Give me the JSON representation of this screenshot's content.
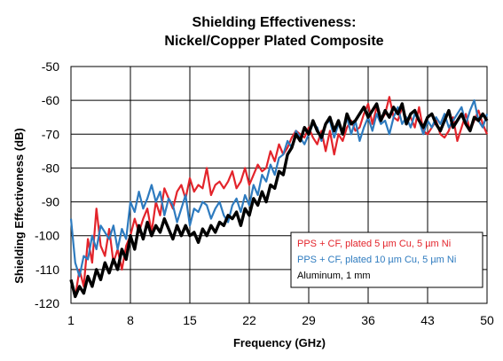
{
  "chart_data": {
    "type": "line",
    "title": [
      "Shielding Effectiveness:",
      "Nickel/Copper Plated Composite"
    ],
    "xlabel": "Frequency (GHz)",
    "ylabel": "Shielding Effectiveness (dB)",
    "xlim": [
      1,
      50
    ],
    "ylim": [
      -120,
      -50
    ],
    "xticks": [
      1,
      8,
      15,
      22,
      29,
      36,
      43,
      50
    ],
    "yticks": [
      -120,
      -110,
      -100,
      -90,
      -80,
      -70,
      -60,
      -50
    ],
    "grid": true,
    "legend_position": "lower-right",
    "series": [
      {
        "name": "PPS + CF, plated 5 µm Cu, 5 µm Ni",
        "color": "#e3242b",
        "x": [
          1,
          1.5,
          2,
          2.5,
          3,
          3.5,
          4,
          4.5,
          5,
          5.5,
          6,
          6.5,
          7,
          7.5,
          8,
          8.5,
          9,
          9.5,
          10,
          10.5,
          11,
          11.5,
          12,
          12.5,
          13,
          13.5,
          14,
          14.5,
          15,
          15.5,
          16,
          16.5,
          17,
          17.5,
          18,
          18.5,
          19,
          19.5,
          20,
          20.5,
          21,
          21.5,
          22,
          22.5,
          23,
          23.5,
          24,
          24.5,
          25,
          25.5,
          26,
          26.5,
          27,
          27.5,
          28,
          28.5,
          29,
          29.5,
          30,
          30.5,
          31,
          31.5,
          32,
          32.5,
          33,
          33.5,
          34,
          34.5,
          35,
          35.5,
          36,
          36.5,
          37,
          37.5,
          38,
          38.5,
          39,
          39.5,
          40,
          40.5,
          41,
          41.5,
          42,
          42.5,
          43,
          43.5,
          44,
          44.5,
          45,
          45.5,
          46,
          46.5,
          47,
          47.5,
          48,
          48.5,
          49,
          49.5,
          50
        ],
        "y": [
          -113,
          -118,
          -110,
          -115,
          -101,
          -108,
          -92,
          -103,
          -106,
          -98,
          -108,
          -104,
          -110,
          -103,
          -100,
          -95,
          -99,
          -95,
          -92,
          -99,
          -90,
          -94,
          -86,
          -89,
          -92,
          -87,
          -85,
          -89,
          -83,
          -87,
          -85,
          -86,
          -80,
          -88,
          -85,
          -84,
          -86,
          -84,
          -81,
          -86,
          -84,
          -80,
          -85,
          -82,
          -79,
          -81,
          -80,
          -75,
          -78,
          -73,
          -76,
          -74,
          -71,
          -69,
          -70,
          -71,
          -68,
          -71,
          -73,
          -69,
          -75,
          -69,
          -76,
          -70,
          -72,
          -68,
          -66,
          -69,
          -68,
          -64,
          -61,
          -67,
          -62,
          -66,
          -64,
          -59,
          -65,
          -66,
          -62,
          -66,
          -65,
          -68,
          -62,
          -69,
          -70,
          -68,
          -66,
          -70,
          -71,
          -69,
          -65,
          -72,
          -68,
          -64,
          -69,
          -66,
          -63,
          -67,
          -70
        ]
      },
      {
        "name": "PPS + CF, plated 10 µm Cu, 5 µm Ni",
        "color": "#2e7bbf",
        "x": [
          1,
          1.5,
          2,
          2.5,
          3,
          3.5,
          4,
          4.5,
          5,
          5.5,
          6,
          6.5,
          7,
          7.5,
          8,
          8.5,
          9,
          9.5,
          10,
          10.5,
          11,
          11.5,
          12,
          12.5,
          13,
          13.5,
          14,
          14.5,
          15,
          15.5,
          16,
          16.5,
          17,
          17.5,
          18,
          18.5,
          19,
          19.5,
          20,
          20.5,
          21,
          21.5,
          22,
          22.5,
          23,
          23.5,
          24,
          24.5,
          25,
          25.5,
          26,
          26.5,
          27,
          27.5,
          28,
          28.5,
          29,
          29.5,
          30,
          30.5,
          31,
          31.5,
          32,
          32.5,
          33,
          33.5,
          34,
          34.5,
          35,
          35.5,
          36,
          36.5,
          37,
          37.5,
          38,
          38.5,
          39,
          39.5,
          40,
          40.5,
          41,
          41.5,
          42,
          42.5,
          43,
          43.5,
          44,
          44.5,
          45,
          45.5,
          46,
          46.5,
          47,
          47.5,
          48,
          48.5,
          49,
          49.5,
          50
        ],
        "y": [
          -95,
          -108,
          -112,
          -106,
          -107,
          -100,
          -104,
          -97,
          -99,
          -101,
          -97,
          -104,
          -98,
          -101,
          -90,
          -93,
          -87,
          -92,
          -89,
          -85,
          -90,
          -87,
          -94,
          -89,
          -91,
          -96,
          -92,
          -88,
          -97,
          -92,
          -93,
          -90,
          -91,
          -95,
          -92,
          -90,
          -94,
          -96,
          -91,
          -89,
          -93,
          -88,
          -91,
          -85,
          -88,
          -82,
          -84,
          -79,
          -82,
          -77,
          -76,
          -72,
          -74,
          -69,
          -71,
          -73,
          -70,
          -67,
          -68,
          -72,
          -67,
          -66,
          -71,
          -67,
          -69,
          -65,
          -70,
          -66,
          -72,
          -68,
          -65,
          -69,
          -64,
          -67,
          -66,
          -70,
          -65,
          -62,
          -67,
          -65,
          -68,
          -64,
          -66,
          -70,
          -66,
          -68,
          -65,
          -67,
          -64,
          -68,
          -66,
          -64,
          -62,
          -67,
          -63,
          -60,
          -66,
          -68,
          -64
        ]
      },
      {
        "name": "Aluminum, 1 mm",
        "color": "#000000",
        "x": [
          1,
          1.5,
          2,
          2.5,
          3,
          3.5,
          4,
          4.5,
          5,
          5.5,
          6,
          6.5,
          7,
          7.5,
          8,
          8.5,
          9,
          9.5,
          10,
          10.5,
          11,
          11.5,
          12,
          12.5,
          13,
          13.5,
          14,
          14.5,
          15,
          15.5,
          16,
          16.5,
          17,
          17.5,
          18,
          18.5,
          19,
          19.5,
          20,
          20.5,
          21,
          21.5,
          22,
          22.5,
          23,
          23.5,
          24,
          24.5,
          25,
          25.5,
          26,
          26.5,
          27,
          27.5,
          28,
          28.5,
          29,
          29.5,
          30,
          30.5,
          31,
          31.5,
          32,
          32.5,
          33,
          33.5,
          34,
          34.5,
          35,
          35.5,
          36,
          36.5,
          37,
          37.5,
          38,
          38.5,
          39,
          39.5,
          40,
          40.5,
          41,
          41.5,
          42,
          42.5,
          43,
          43.5,
          44,
          44.5,
          45,
          45.5,
          46,
          46.5,
          47,
          47.5,
          48,
          48.5,
          49,
          49.5,
          50
        ],
        "y": [
          -113,
          -118,
          -115,
          -117,
          -112,
          -115,
          -110,
          -113,
          -108,
          -111,
          -107,
          -110,
          -104,
          -107,
          -100,
          -104,
          -97,
          -101,
          -96,
          -100,
          -97,
          -99,
          -95,
          -98,
          -101,
          -97,
          -100,
          -97,
          -100,
          -99,
          -102,
          -98,
          -100,
          -97,
          -99,
          -96,
          -97,
          -94,
          -95,
          -93,
          -97,
          -92,
          -94,
          -89,
          -91,
          -87,
          -90,
          -85,
          -86,
          -81,
          -82,
          -76,
          -74,
          -70,
          -72,
          -68,
          -70,
          -66,
          -69,
          -71,
          -67,
          -65,
          -69,
          -66,
          -70,
          -64,
          -67,
          -66,
          -64,
          -62,
          -65,
          -63,
          -61,
          -66,
          -63,
          -65,
          -62,
          -64,
          -61,
          -67,
          -64,
          -63,
          -66,
          -68,
          -65,
          -64,
          -67,
          -69,
          -66,
          -63,
          -68,
          -66,
          -64,
          -67,
          -69,
          -65,
          -66,
          -64,
          -66
        ]
      }
    ]
  }
}
